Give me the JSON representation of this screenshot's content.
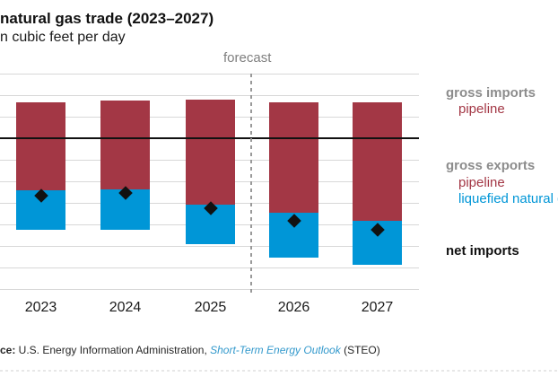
{
  "header": {
    "title": "natural gas trade (2023–2027)",
    "subtitle": "n cubic feet per day"
  },
  "chart_data": {
    "type": "bar",
    "stacked": true,
    "title": "natural gas trade (2023–2027)",
    "ylabel": "n cubic feet per day",
    "categories": [
      "2023",
      "2024",
      "2025",
      "2026",
      "2027"
    ],
    "series": [
      {
        "name": "gross imports – pipeline",
        "color": "red",
        "values": [
          8.3,
          8.7,
          8.8,
          8.3,
          8.3
        ]
      },
      {
        "name": "gross exports – pipeline",
        "color": "red",
        "values": [
          -12.1,
          -12.0,
          -15.5,
          -17.4,
          -19.2
        ]
      },
      {
        "name": "gross exports – liquefied natural gas",
        "color": "blue",
        "values": [
          -9.3,
          -9.3,
          -9.1,
          -10.4,
          -10.2
        ]
      },
      {
        "name": "net imports",
        "marker": "diamond",
        "color": "black",
        "values": [
          -13.4,
          -12.9,
          -16.4,
          -19.3,
          -21.4
        ]
      }
    ],
    "ylim": [
      -35,
      15
    ],
    "grid_step": 5,
    "zero_line": true,
    "grid": true,
    "legend_position": "right",
    "forecast": {
      "label": "forecast",
      "divider_after_category": "2025"
    }
  },
  "legend": {
    "gross_imports": {
      "header": "gross imports",
      "items": [
        {
          "label": "pipeline",
          "color": "red"
        }
      ]
    },
    "gross_exports": {
      "header": "gross exports",
      "items": [
        {
          "label": "pipeline",
          "color": "red"
        },
        {
          "label": "liquefied natural gas",
          "color": "blue"
        }
      ]
    },
    "net_imports": {
      "header": "net imports"
    }
  },
  "source": {
    "prefix": "ce:",
    "body": " U.S. Energy Information Administration, ",
    "link": "Short-Term Energy Outlook",
    "suffix": " (STEO)"
  },
  "colors": {
    "red": "#a33745",
    "blue": "#0096d7",
    "grid": "#d8d8d8",
    "zero_line": "#111111",
    "divider_gray": "#999999",
    "gray_header": "#8c8c8c",
    "forecast_gray": "#7f7f7f",
    "link_blue": "#3399cc"
  }
}
